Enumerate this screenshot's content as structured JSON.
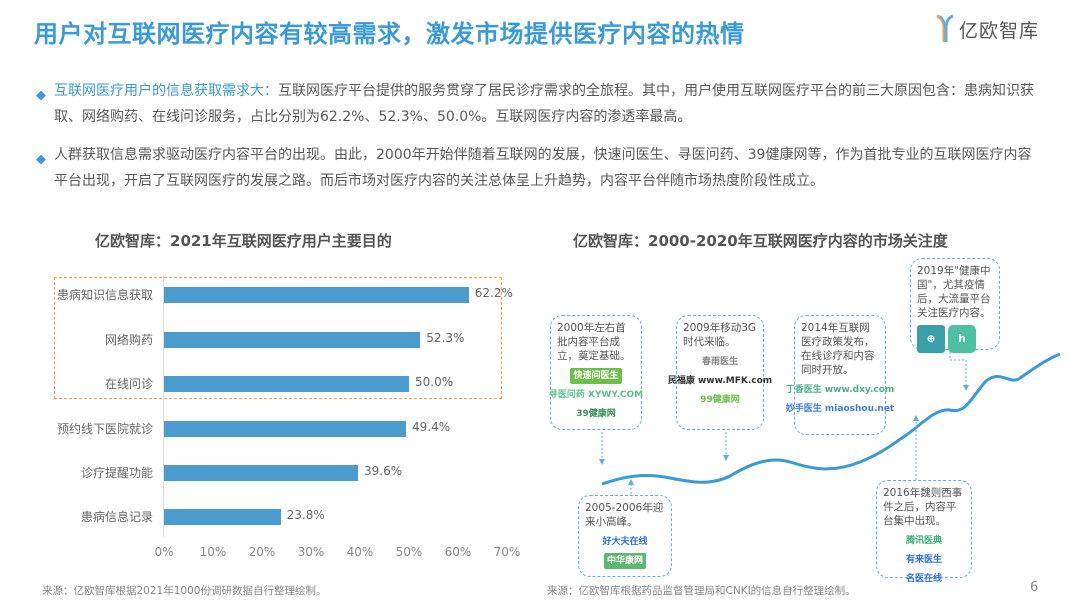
{
  "header": {
    "title": "用户对互联网医疗内容有较高需求，激发市场提供医疗内容的热情",
    "logo_text": "亿欧智库",
    "accent_color": "#3a9ad9"
  },
  "bullets": [
    {
      "highlight": "互联网医疗用户的信息获取需求大：",
      "text": "互联网医疗平台提供的服务贯穿了居民诊疗需求的全旅程。其中，用户使用互联网医疗平台的前三大原因包含：患病知识获取、网络购药、在线问诊服务，占比分别为62.2%、52.3%、50.0%。互联网医疗内容的渗透率最高。"
    },
    {
      "highlight": "",
      "text": "人群获取信息需求驱动医疗内容平台的出现。由此，2000年开始伴随着互联网的发展，快速问医生、寻医问药、39健康网等，作为首批专业的互联网医疗内容平台出现，开启了互联网医疗的发展之路。而后市场对医疗内容的关注总体呈上升趋势，内容平台伴随市场热度阶段性成立。"
    }
  ],
  "chart_data": [
    {
      "type": "bar",
      "orientation": "horizontal",
      "title": "亿欧智库：2021年互联网医疗用户主要目的",
      "categories": [
        "患病知识信息获取",
        "网络购药",
        "在线问诊",
        "预约线下医院就诊",
        "诊疗提醒功能",
        "患病信息记录"
      ],
      "values": [
        62.2,
        52.3,
        50.0,
        49.4,
        39.6,
        23.8
      ],
      "value_labels": [
        "62.2%",
        "52.3%",
        "50.0%",
        "49.4%",
        "39.6%",
        "23.8%"
      ],
      "x_ticks": [
        "0%",
        "10%",
        "20%",
        "30%",
        "40%",
        "50%",
        "60%",
        "70%"
      ],
      "xlim": [
        0,
        70
      ],
      "bar_color": "#4a9ccf",
      "highlighted_categories": [
        "患病知识信息获取",
        "网络购药",
        "在线问诊"
      ],
      "highlight_color": "#f4a054",
      "source": "来源：亿欧智库根据2021年1000份调研数据自行整理绘制。"
    },
    {
      "type": "line",
      "title": "亿欧智库：2000-2020年互联网医疗内容的市场关注度",
      "x": [
        "2000",
        "2005-2006",
        "2009",
        "2014",
        "2016",
        "2019"
      ],
      "trend": "overall rising with periodic fluctuations",
      "annotations": [
        {
          "label": "2000年左右首批内容平台成立，奠定基础。",
          "logos": [
            "快速问医生",
            "寻医问药 XYWY.COM",
            "39健康网"
          ]
        },
        {
          "label": "2005-2006年迎来小高峰。",
          "logos": [
            "好大夫在线",
            "中华康网"
          ]
        },
        {
          "label": "2009年移动3G时代来临。",
          "logos": [
            "春雨医生",
            "民福康 www.MFK.com",
            "99健康网"
          ]
        },
        {
          "label": "2014年互联网医疗政策发布，在线诊疗和内容同时开放。",
          "logos": [
            "丁香医生 www.dxy.com",
            "妙手医生 miaoshou.net"
          ]
        },
        {
          "label": "2016年魏则西事件之后，内容平台集中出现。",
          "logos": [
            "腾讯医典",
            "有来医生",
            "名医在线"
          ]
        },
        {
          "label": "2019年\"健康中国\"，尤其疫情后，大流量平台关注医疗内容。",
          "logos": [
            "app-icon-1",
            "app-icon-2"
          ]
        }
      ],
      "line_color": "#3a9ad9",
      "source": "来源：亿欧智库根据药品监督管理局和CNKI的信息自行整理绘制。"
    }
  ],
  "footer": {
    "page_number": "6"
  }
}
